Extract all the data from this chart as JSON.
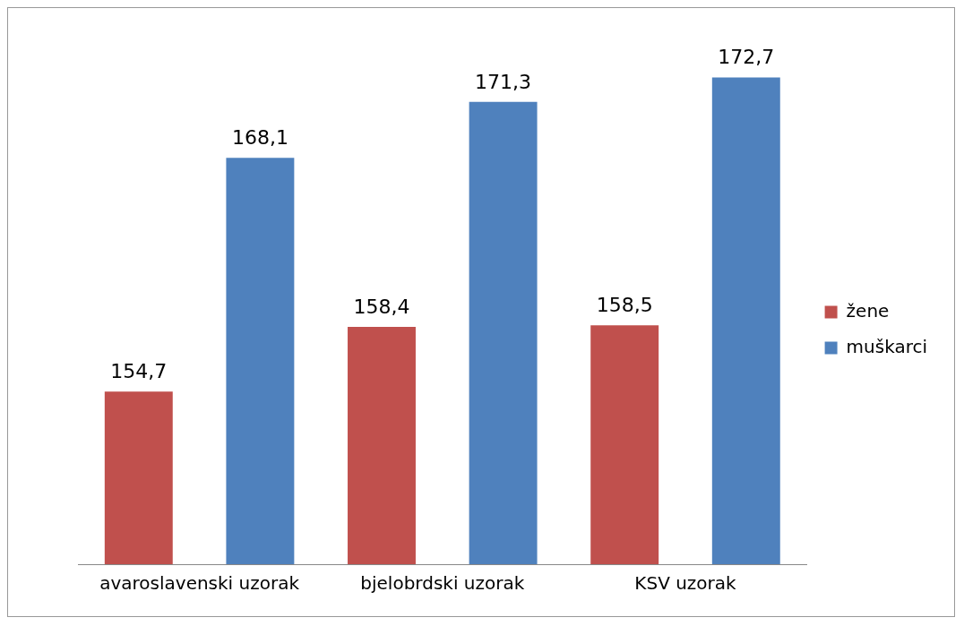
{
  "chart_data": {
    "type": "bar",
    "categories": [
      "avaroslavenski uzorak",
      "bjelobrdski uzorak",
      "KSV uzorak"
    ],
    "series": [
      {
        "name": "žene",
        "color": "#c0504d",
        "values": [
          154.7,
          158.4,
          158.5
        ],
        "value_labels": [
          "154,7",
          "158,4",
          "158,5"
        ]
      },
      {
        "name": "muškarci",
        "color": "#4f81bd",
        "values": [
          168.1,
          171.3,
          172.7
        ],
        "value_labels": [
          "168,1",
          "171,3",
          "172,7"
        ]
      }
    ],
    "tick_labels": "x",
    "legend": "right",
    "grid": false
  }
}
